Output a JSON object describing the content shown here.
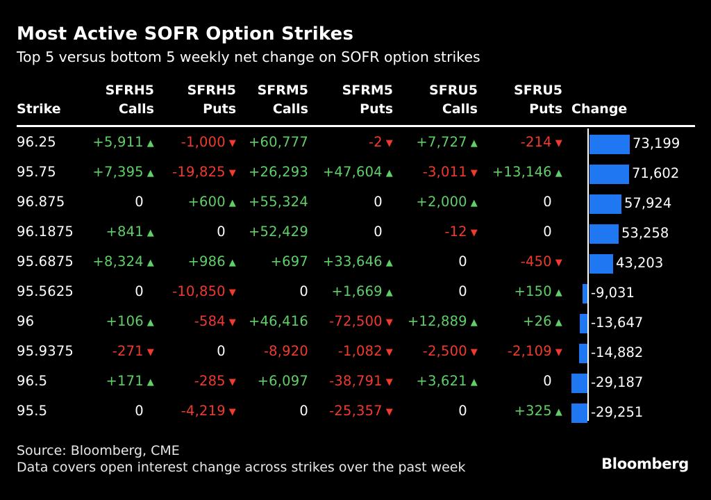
{
  "header": {
    "title": "Most Active SOFR Option Strikes",
    "subtitle": "Top 5 versus bottom 5 weekly net change on SOFR option strikes"
  },
  "columns": [
    "Strike",
    "SFRH5\nCalls",
    "SFRH5\nPuts",
    "SFRM5\nCalls",
    "SFRM5\nPuts",
    "SFRU5\nCalls",
    "SFRU5\nPuts",
    "Change"
  ],
  "colors": {
    "positive": "#5fd068",
    "negative": "#f03a2e",
    "bar": "#1f77f2",
    "background": "#000000"
  },
  "rows": [
    {
      "strike": "96.25",
      "cells": [
        "+5,911",
        "-1,000",
        "+60,777",
        "-2",
        "+7,727",
        "-214"
      ],
      "change": "73,199"
    },
    {
      "strike": "95.75",
      "cells": [
        "+7,395",
        "-19,825",
        "+26,293",
        "+47,604",
        "-3,011",
        "+13,146"
      ],
      "change": "71,602"
    },
    {
      "strike": "96.875",
      "cells": [
        "0",
        "+600",
        "+55,324",
        "0",
        "+2,000",
        "0"
      ],
      "change": "57,924"
    },
    {
      "strike": "96.1875",
      "cells": [
        "+841",
        "0",
        "+52,429",
        "0",
        "-12",
        "0"
      ],
      "change": "53,258"
    },
    {
      "strike": "95.6875",
      "cells": [
        "+8,324",
        "+986",
        "+697",
        "+33,646",
        "0",
        "-450"
      ],
      "change": "43,203"
    },
    {
      "strike": "95.5625",
      "cells": [
        "0",
        "-10,850",
        "0",
        "+1,669",
        "0",
        "+150"
      ],
      "change": "-9,031"
    },
    {
      "strike": "96",
      "cells": [
        "+106",
        "-584",
        "+46,416",
        "-72,500",
        "+12,889",
        "+26"
      ],
      "change": "-13,647"
    },
    {
      "strike": "95.9375",
      "cells": [
        "-271",
        "0",
        "-8,920",
        "-1,082",
        "-2,500",
        "-2,109"
      ],
      "change": "-14,882"
    },
    {
      "strike": "96.5",
      "cells": [
        "+171",
        "-285",
        "+6,097",
        "-38,791",
        "+3,621",
        "0"
      ],
      "change": "-29,187"
    },
    {
      "strike": "95.5",
      "cells": [
        "0",
        "-4,219",
        "0",
        "-25,357",
        "0",
        "+325"
      ],
      "change": "-29,251"
    }
  ],
  "chart_data": {
    "type": "bar",
    "orientation": "horizontal",
    "categories": [
      "96.25",
      "95.75",
      "96.875",
      "96.1875",
      "95.6875",
      "95.5625",
      "96",
      "95.9375",
      "96.5",
      "95.5"
    ],
    "values": [
      73199,
      71602,
      57924,
      53258,
      43203,
      -9031,
      -13647,
      -14882,
      -29187,
      -29251
    ],
    "series": [
      {
        "name": "Change",
        "values": [
          73199,
          71602,
          57924,
          53258,
          43203,
          -9031,
          -13647,
          -14882,
          -29187,
          -29251
        ]
      }
    ]
  },
  "footer": {
    "source": "Source: Bloomberg, CME",
    "note": "Data covers open interest change across strikes over the past week",
    "brand": "Bloomberg"
  }
}
